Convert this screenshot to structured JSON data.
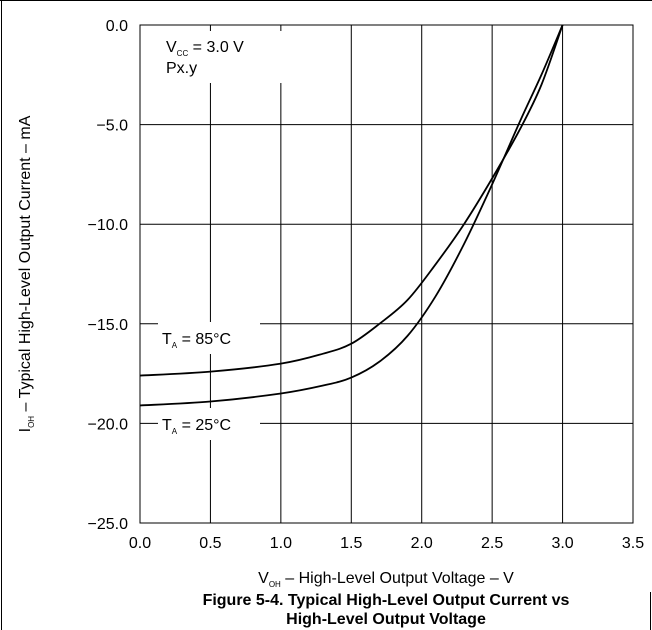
{
  "chart_data": {
    "type": "line",
    "xlabel": {
      "main": "V",
      "sub": "OH",
      "rest": " – High-Level Output Voltage – V"
    },
    "ylabel": {
      "main": "I",
      "sub": "OH",
      "rest": " – Typical High-Level Output Current – mA"
    },
    "xlim": [
      0.0,
      3.5
    ],
    "ylim": [
      -25.0,
      0.0
    ],
    "x_ticks": [
      "0.0",
      "0.5",
      "1.0",
      "1.5",
      "2.0",
      "2.5",
      "3.0",
      "3.5"
    ],
    "y_ticks": [
      "0.0",
      "−5.0",
      "−10.0",
      "−15.0",
      "−20.0",
      "−25.0"
    ],
    "grid": true,
    "annotation": {
      "vcc_main": "V",
      "vcc_sub": "CC",
      "vcc_rest": " = 3.0 V",
      "port": "Px.y"
    },
    "series": [
      {
        "name": "TA = 85°C",
        "label_main": "T",
        "label_sub": "A",
        "label_rest": " = 85°C",
        "x": [
          0.0,
          0.5,
          1.0,
          1.3,
          1.5,
          1.7,
          1.9,
          2.1,
          2.3,
          2.5,
          2.7,
          2.85,
          3.0
        ],
        "y": [
          -17.6,
          -17.4,
          -17.0,
          -16.5,
          -16.0,
          -15.0,
          -13.8,
          -12.0,
          -10.0,
          -7.7,
          -5.2,
          -3.0,
          0.0
        ]
      },
      {
        "name": "TA = 25°C",
        "label_main": "T",
        "label_sub": "A",
        "label_rest": " = 25°C",
        "x": [
          0.0,
          0.5,
          1.0,
          1.3,
          1.5,
          1.7,
          1.9,
          2.1,
          2.3,
          2.5,
          2.7,
          2.85,
          3.0
        ],
        "y": [
          -19.1,
          -18.9,
          -18.5,
          -18.1,
          -17.7,
          -16.9,
          -15.6,
          -13.6,
          -11.0,
          -8.0,
          -4.8,
          -2.5,
          0.0
        ]
      }
    ],
    "caption": [
      "Figure 5-4. Typical High-Level Output Current vs",
      "High-Level Output Voltage"
    ]
  }
}
